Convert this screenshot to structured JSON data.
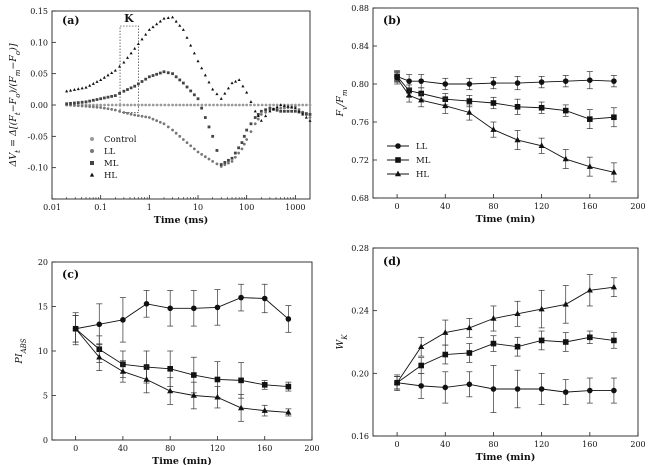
{
  "chart_data": [
    {
      "panel": "(a)",
      "type": "scatter",
      "xlabel": "Time (ms)",
      "ylabel": "ΔV_t = Δ[(F_t−F_o)/(F_m−F_o)]",
      "xscale": "log",
      "xlim": [
        0.01,
        2000
      ],
      "ylim": [
        -0.15,
        0.15
      ],
      "x_ticks": [
        0.01,
        0.1,
        1,
        10,
        100,
        1000
      ],
      "x_tick_labels": [
        "0.01",
        "0.1",
        "1",
        "10",
        "100",
        "1000"
      ],
      "y_ticks": [
        -0.15,
        -0.1,
        -0.05,
        0.0,
        0.05,
        0.1,
        0.15
      ],
      "y_tick_labels": [
        "",
        "-0.10",
        "-0.05",
        "0.00",
        "0.05",
        "0.10",
        "0.15"
      ],
      "annotation": "K",
      "legend": "left",
      "series": [
        {
          "name": "Control",
          "marker": "circle",
          "color": "#9a9a9a",
          "points": [
            [
              0.02,
              0
            ],
            [
              0.05,
              0
            ],
            [
              0.1,
              0
            ],
            [
              0.3,
              0
            ],
            [
              1,
              0
            ],
            [
              3,
              0
            ],
            [
              10,
              0
            ],
            [
              30,
              0
            ],
            [
              100,
              0
            ],
            [
              300,
              0
            ],
            [
              1000,
              0
            ],
            [
              2000,
              0
            ]
          ]
        },
        {
          "name": "LL",
          "marker": "circle",
          "color": "#777777",
          "points": [
            [
              0.02,
              0
            ],
            [
              0.05,
              -0.002
            ],
            [
              0.1,
              -0.004
            ],
            [
              0.2,
              -0.008
            ],
            [
              0.3,
              -0.012
            ],
            [
              0.5,
              -0.016
            ],
            [
              1,
              -0.02
            ],
            [
              2,
              -0.03
            ],
            [
              3,
              -0.04
            ],
            [
              5,
              -0.055
            ],
            [
              10,
              -0.075
            ],
            [
              20,
              -0.09
            ],
            [
              30,
              -0.098
            ],
            [
              50,
              -0.09
            ],
            [
              80,
              -0.07
            ],
            [
              100,
              -0.055
            ],
            [
              150,
              -0.03
            ],
            [
              200,
              -0.015
            ],
            [
              300,
              -0.008
            ],
            [
              500,
              -0.005
            ],
            [
              1000,
              -0.003
            ],
            [
              2000,
              -0.02
            ]
          ]
        },
        {
          "name": "ML",
          "marker": "square",
          "color": "#444444",
          "points": [
            [
              0.02,
              0.002
            ],
            [
              0.05,
              0.005
            ],
            [
              0.1,
              0.01
            ],
            [
              0.2,
              0.015
            ],
            [
              0.3,
              0.022
            ],
            [
              0.5,
              0.03
            ],
            [
              1,
              0.045
            ],
            [
              2,
              0.053
            ],
            [
              3,
              0.05
            ],
            [
              5,
              0.035
            ],
            [
              10,
              0.01
            ],
            [
              20,
              -0.05
            ],
            [
              30,
              -0.095
            ],
            [
              50,
              -0.085
            ],
            [
              80,
              -0.06
            ],
            [
              100,
              -0.04
            ],
            [
              150,
              -0.02
            ],
            [
              200,
              -0.01
            ],
            [
              300,
              -0.005
            ],
            [
              500,
              -0.01
            ],
            [
              1000,
              -0.01
            ],
            [
              2000,
              -0.015
            ]
          ]
        },
        {
          "name": "HL",
          "marker": "triangle",
          "color": "#111111",
          "points": [
            [
              0.02,
              0.022
            ],
            [
              0.05,
              0.028
            ],
            [
              0.1,
              0.04
            ],
            [
              0.2,
              0.055
            ],
            [
              0.3,
              0.068
            ],
            [
              0.5,
              0.09
            ],
            [
              1,
              0.12
            ],
            [
              2,
              0.138
            ],
            [
              3,
              0.14
            ],
            [
              5,
              0.12
            ],
            [
              10,
              0.07
            ],
            [
              20,
              0.025
            ],
            [
              30,
              0.01
            ],
            [
              50,
              0.035
            ],
            [
              70,
              0.04
            ],
            [
              100,
              0.02
            ],
            [
              150,
              -0.01
            ],
            [
              200,
              -0.025
            ],
            [
              300,
              -0.01
            ],
            [
              500,
              0
            ],
            [
              1000,
              -0.005
            ],
            [
              2000,
              -0.025
            ]
          ]
        }
      ]
    },
    {
      "panel": "(b)",
      "type": "line",
      "xlabel": "Time (min)",
      "ylabel": "F_v/F_m",
      "xlim": [
        -20,
        200
      ],
      "ylim": [
        0.68,
        0.88
      ],
      "x_ticks": [
        0,
        40,
        80,
        120,
        160,
        200
      ],
      "y_ticks": [
        0.68,
        0.72,
        0.76,
        0.8,
        0.84,
        0.88
      ],
      "y_tick_labels": [
        "0.68",
        "0.72",
        "0.76",
        "0.80",
        "0.84",
        "0.88"
      ],
      "legend": "bottom-left",
      "x": [
        0,
        10,
        20,
        40,
        60,
        80,
        100,
        120,
        140,
        160,
        180
      ],
      "series": [
        {
          "name": "LL",
          "marker": "circle",
          "values": [
            0.808,
            0.803,
            0.803,
            0.8,
            0.8,
            0.801,
            0.801,
            0.802,
            0.803,
            0.804,
            0.803
          ],
          "errors": [
            0.006,
            0.007,
            0.007,
            0.006,
            0.006,
            0.006,
            0.007,
            0.006,
            0.006,
            0.009,
            0.006
          ]
        },
        {
          "name": "ML",
          "marker": "square",
          "values": [
            0.808,
            0.793,
            0.79,
            0.784,
            0.782,
            0.78,
            0.776,
            0.775,
            0.772,
            0.763,
            0.765
          ],
          "errors": [
            0.005,
            0.006,
            0.006,
            0.006,
            0.006,
            0.006,
            0.008,
            0.006,
            0.006,
            0.01,
            0.01
          ]
        },
        {
          "name": "HL",
          "marker": "triangle",
          "values": [
            0.806,
            0.788,
            0.783,
            0.777,
            0.77,
            0.752,
            0.741,
            0.735,
            0.721,
            0.713,
            0.707
          ],
          "errors": [
            0.006,
            0.007,
            0.007,
            0.008,
            0.008,
            0.008,
            0.01,
            0.008,
            0.01,
            0.01,
            0.01
          ]
        }
      ]
    },
    {
      "panel": "(c)",
      "type": "line",
      "xlabel": "Time (min)",
      "ylabel": "PI_ABS",
      "xlim": [
        -20,
        200
      ],
      "ylim": [
        0,
        20
      ],
      "x_ticks": [
        0,
        40,
        80,
        120,
        160,
        200
      ],
      "y_ticks": [
        0,
        5,
        10,
        15,
        20
      ],
      "y_tick_labels": [
        "0",
        "5",
        "10",
        "15",
        "20"
      ],
      "x": [
        0,
        20,
        40,
        60,
        80,
        100,
        120,
        140,
        160,
        180
      ],
      "series": [
        {
          "name": "LL",
          "marker": "circle",
          "values": [
            12.5,
            13.0,
            13.5,
            15.3,
            14.8,
            14.8,
            14.9,
            16.0,
            15.9,
            13.6
          ],
          "errors": [
            1.8,
            2.3,
            2.5,
            1.5,
            2.0,
            2.0,
            2.0,
            1.5,
            1.6,
            1.5
          ]
        },
        {
          "name": "ML",
          "marker": "square",
          "values": [
            12.5,
            10.2,
            8.5,
            8.2,
            8.0,
            7.3,
            6.8,
            6.7,
            6.2,
            6.0
          ],
          "errors": [
            1.5,
            1.5,
            1.5,
            1.8,
            2.0,
            2.0,
            2.0,
            2.0,
            0.5,
            0.5
          ]
        },
        {
          "name": "HL",
          "marker": "triangle",
          "values": [
            12.5,
            9.3,
            7.7,
            6.8,
            5.5,
            5.0,
            4.8,
            3.6,
            3.3,
            3.1
          ],
          "errors": [
            1.5,
            1.5,
            1.2,
            1.5,
            1.5,
            1.5,
            1.2,
            1.5,
            0.6,
            0.4
          ]
        }
      ]
    },
    {
      "panel": "(d)",
      "type": "line",
      "xlabel": "Time (min)",
      "ylabel": "W_K",
      "xlim": [
        -20,
        200
      ],
      "ylim": [
        0.16,
        0.28
      ],
      "x_ticks": [
        0,
        40,
        80,
        120,
        160,
        200
      ],
      "y_ticks": [
        0.16,
        0.2,
        0.24,
        0.28
      ],
      "y_tick_labels": [
        "0.16",
        "0.20",
        "0.24",
        "0.28"
      ],
      "x": [
        0,
        20,
        40,
        60,
        80,
        100,
        120,
        140,
        160,
        180
      ],
      "series": [
        {
          "name": "LL",
          "marker": "circle",
          "values": [
            0.194,
            0.192,
            0.191,
            0.193,
            0.19,
            0.19,
            0.19,
            0.188,
            0.189,
            0.189
          ],
          "errors": [
            0.005,
            0.008,
            0.01,
            0.008,
            0.015,
            0.012,
            0.01,
            0.008,
            0.008,
            0.008
          ]
        },
        {
          "name": "ML",
          "marker": "square",
          "values": [
            0.194,
            0.205,
            0.212,
            0.213,
            0.219,
            0.217,
            0.221,
            0.22,
            0.223,
            0.221
          ],
          "errors": [
            0.004,
            0.005,
            0.006,
            0.006,
            0.005,
            0.006,
            0.006,
            0.006,
            0.004,
            0.005
          ]
        },
        {
          "name": "HL",
          "marker": "triangle",
          "values": [
            0.194,
            0.217,
            0.226,
            0.229,
            0.235,
            0.238,
            0.241,
            0.244,
            0.253,
            0.255
          ],
          "errors": [
            0.004,
            0.006,
            0.008,
            0.006,
            0.008,
            0.008,
            0.012,
            0.012,
            0.01,
            0.006
          ]
        }
      ]
    }
  ]
}
